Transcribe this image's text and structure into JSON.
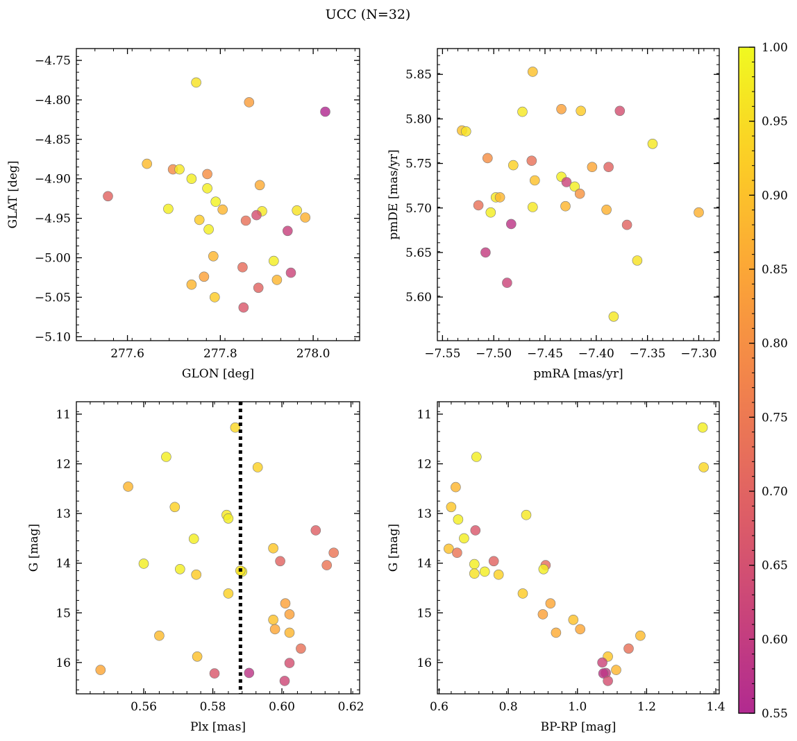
{
  "title": "UCC (N=32)",
  "colorbar": {
    "min": 0.55,
    "max": 1.0,
    "ticks": [
      0.55,
      0.6,
      0.65,
      0.7,
      0.75,
      0.8,
      0.85,
      0.9,
      0.95,
      1.0
    ],
    "tick_labels": [
      "0.55",
      "0.60",
      "0.65",
      "0.70",
      "0.75",
      "0.80",
      "0.85",
      "0.90",
      "0.95",
      "1.00"
    ]
  },
  "chart_data": [
    {
      "type": "scatter",
      "xlabel": "GLON [deg]",
      "ylabel": "GLAT [deg]",
      "xlim": [
        277.49,
        278.1
      ],
      "ylim": [
        -5.105,
        -4.735
      ],
      "yinvert": false,
      "xticks": [
        277.6,
        277.8,
        278.0
      ],
      "xtick_labels": [
        "277.6",
        "277.8",
        "278.0"
      ],
      "yticks": [
        -4.75,
        -4.8,
        -4.85,
        -4.9,
        -4.95,
        -5.0,
        -5.05,
        -5.1
      ],
      "ytick_labels": [
        "−4.75",
        "−4.80",
        "−4.85",
        "−4.90",
        "−4.95",
        "−5.00",
        "−5.05",
        "−5.10"
      ],
      "x": [
        277.748,
        277.862,
        278.026,
        277.642,
        277.698,
        277.712,
        277.772,
        277.738,
        277.558,
        277.772,
        277.885,
        277.79,
        277.688,
        277.805,
        277.89,
        277.965,
        277.755,
        277.775,
        277.983,
        277.878,
        277.855,
        277.945,
        277.785,
        277.915,
        277.848,
        277.952,
        277.765,
        277.922,
        277.738,
        277.788,
        277.882,
        277.85
      ],
      "y": [
        -4.778,
        -4.803,
        -4.815,
        -4.881,
        -4.888,
        -4.888,
        -4.894,
        -4.9,
        -4.922,
        -4.912,
        -4.908,
        -4.929,
        -4.938,
        -4.939,
        -4.941,
        -4.94,
        -4.952,
        -4.964,
        -4.949,
        -4.946,
        -4.953,
        -4.966,
        -4.998,
        -5.004,
        -5.012,
        -5.019,
        -5.024,
        -5.028,
        -5.034,
        -5.05,
        -5.038,
        -5.063
      ],
      "c": [
        0.96,
        0.83,
        0.55,
        0.89,
        0.79,
        0.97,
        0.8,
        0.98,
        0.7,
        0.98,
        0.86,
        0.99,
        0.98,
        0.88,
        0.97,
        0.96,
        0.92,
        0.98,
        0.87,
        0.65,
        0.73,
        0.61,
        0.88,
        0.98,
        0.72,
        0.62,
        0.84,
        0.88,
        0.88,
        0.92,
        0.7,
        0.67
      ]
    },
    {
      "type": "scatter",
      "xlabel": "pmRA [mas/yr]",
      "ylabel": "pmDE [mas/yr]",
      "xlim": [
        -7.555,
        -7.28
      ],
      "ylim": [
        5.551,
        5.879
      ],
      "yinvert": false,
      "xticks": [
        -7.55,
        -7.5,
        -7.45,
        -7.4,
        -7.35,
        -7.3
      ],
      "xtick_labels": [
        "−7.55",
        "−7.50",
        "−7.45",
        "−7.40",
        "−7.35",
        "−7.30"
      ],
      "yticks": [
        5.6,
        5.65,
        5.7,
        5.75,
        5.8,
        5.85
      ],
      "ytick_labels": [
        "5.60",
        "5.65",
        "5.70",
        "5.75",
        "5.80",
        "5.85"
      ],
      "x": [
        -7.462,
        -7.531,
        -7.527,
        -7.472,
        -7.434,
        -7.415,
        -7.377,
        -7.345,
        -7.506,
        -7.481,
        -7.463,
        -7.46,
        -7.404,
        -7.388,
        -7.434,
        -7.429,
        -7.421,
        -7.416,
        -7.498,
        -7.494,
        -7.515,
        -7.503,
        -7.462,
        -7.43,
        -7.39,
        -7.3,
        -7.37,
        -7.483,
        -7.508,
        -7.36,
        -7.487,
        -7.383
      ],
      "y": [
        5.853,
        5.787,
        5.786,
        5.808,
        5.811,
        5.809,
        5.809,
        5.772,
        5.756,
        5.748,
        5.753,
        5.731,
        5.746,
        5.746,
        5.735,
        5.729,
        5.724,
        5.716,
        5.712,
        5.712,
        5.703,
        5.695,
        5.701,
        5.702,
        5.698,
        5.695,
        5.681,
        5.682,
        5.65,
        5.641,
        5.616,
        5.578
      ],
      "c": [
        0.9,
        0.9,
        0.96,
        0.97,
        0.84,
        0.92,
        0.65,
        0.97,
        0.8,
        0.93,
        0.73,
        0.9,
        0.85,
        0.7,
        0.98,
        0.62,
        0.98,
        0.81,
        0.97,
        0.88,
        0.73,
        0.98,
        0.97,
        0.88,
        0.87,
        0.87,
        0.7,
        0.58,
        0.6,
        0.96,
        0.62,
        0.97
      ]
    },
    {
      "type": "scatter",
      "xlabel": "Plx [mas]",
      "ylabel": "G [mag]",
      "xlim": [
        0.5405,
        0.6225
      ],
      "ylim": [
        10.75,
        16.63
      ],
      "yinvert": true,
      "xticks": [
        0.56,
        0.58,
        0.6,
        0.62
      ],
      "xtick_labels": [
        "0.56",
        "0.58",
        "0.60",
        "0.62"
      ],
      "yticks": [
        11,
        12,
        13,
        14,
        15,
        16
      ],
      "ytick_labels": [
        "11",
        "12",
        "13",
        "14",
        "15",
        "16"
      ],
      "vline": 0.588,
      "x": [
        0.5865,
        0.593,
        0.5665,
        0.5555,
        0.569,
        0.584,
        0.5845,
        0.6098,
        0.5745,
        0.5975,
        0.615,
        0.56,
        0.5995,
        0.613,
        0.5705,
        0.5885,
        0.588,
        0.5752,
        0.5845,
        0.601,
        0.6022,
        0.5975,
        0.598,
        0.6022,
        0.6055,
        0.5645,
        0.5755,
        0.6022,
        0.5905,
        0.5805,
        0.6008,
        0.5475
      ],
      "y": [
        11.27,
        12.07,
        11.86,
        12.46,
        12.87,
        13.03,
        13.1,
        13.34,
        13.51,
        13.7,
        13.79,
        14.01,
        13.96,
        14.04,
        14.12,
        14.17,
        14.15,
        14.23,
        14.61,
        14.81,
        15.03,
        15.14,
        15.33,
        15.4,
        15.72,
        15.46,
        15.88,
        16.01,
        16.21,
        16.22,
        16.37,
        16.15
      ],
      "c": [
        0.94,
        0.93,
        0.98,
        0.88,
        0.93,
        0.97,
        0.98,
        0.69,
        0.98,
        0.91,
        0.74,
        0.98,
        0.7,
        0.74,
        0.98,
        0.98,
        0.96,
        0.92,
        0.93,
        0.84,
        0.84,
        0.9,
        0.85,
        0.88,
        0.73,
        0.89,
        0.9,
        0.65,
        0.58,
        0.67,
        0.63,
        0.85
      ]
    },
    {
      "type": "scatter",
      "xlabel": "BP-RP [mag]",
      "ylabel": "G [mag]",
      "xlim": [
        0.595,
        1.41
      ],
      "ylim": [
        10.75,
        16.63
      ],
      "yinvert": true,
      "xticks": [
        0.6,
        0.8,
        1.0,
        1.2,
        1.4
      ],
      "xtick_labels": [
        "0.6",
        "0.8",
        "1.0",
        "1.2",
        "1.4"
      ],
      "yticks": [
        11,
        12,
        13,
        14,
        15,
        16
      ],
      "ytick_labels": [
        "11",
        "12",
        "13",
        "14",
        "15",
        "16"
      ],
      "x": [
        1.362,
        1.365,
        0.708,
        0.648,
        0.635,
        0.852,
        0.655,
        0.705,
        0.672,
        0.628,
        0.652,
        0.702,
        0.758,
        0.908,
        0.732,
        0.902,
        0.772,
        0.702,
        0.842,
        0.922,
        0.9,
        0.988,
        1.008,
        0.938,
        1.182,
        1.148,
        1.088,
        1.072,
        1.082,
        1.075,
        1.112,
        1.088
      ],
      "y": [
        11.27,
        12.07,
        11.86,
        12.47,
        12.87,
        13.03,
        13.12,
        13.34,
        13.5,
        13.71,
        13.79,
        14.02,
        13.96,
        14.04,
        14.17,
        14.12,
        14.23,
        14.21,
        14.61,
        14.81,
        15.03,
        15.14,
        15.33,
        15.4,
        15.46,
        15.72,
        15.88,
        16.0,
        16.21,
        16.22,
        16.15,
        16.37
      ],
      "c": [
        0.98,
        0.94,
        0.98,
        0.88,
        0.91,
        0.97,
        0.98,
        0.67,
        0.98,
        0.9,
        0.74,
        0.98,
        0.7,
        0.72,
        0.98,
        0.98,
        0.93,
        0.96,
        0.92,
        0.85,
        0.84,
        0.9,
        0.85,
        0.86,
        0.89,
        0.73,
        0.91,
        0.62,
        0.6,
        0.58,
        0.88,
        0.65
      ]
    }
  ]
}
